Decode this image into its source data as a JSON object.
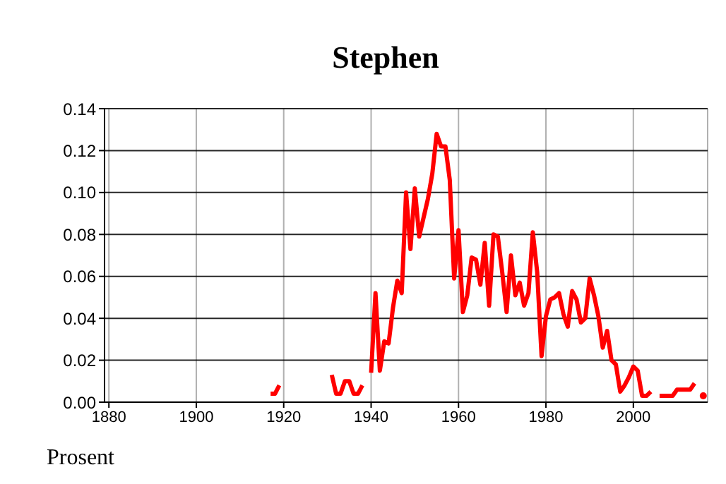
{
  "chart_data": {
    "type": "line",
    "title": "Stephen",
    "ylabel": "Prosent",
    "x": [
      1917,
      1918,
      1919,
      1920,
      1921,
      1922,
      1923,
      1924,
      1925,
      1926,
      1927,
      1928,
      1929,
      1930,
      1931,
      1932,
      1933,
      1934,
      1935,
      1936,
      1937,
      1938,
      1939,
      1940,
      1941,
      1942,
      1943,
      1944,
      1945,
      1946,
      1947,
      1948,
      1949,
      1950,
      1951,
      1952,
      1953,
      1954,
      1955,
      1956,
      1957,
      1958,
      1959,
      1960,
      1961,
      1962,
      1963,
      1964,
      1965,
      1966,
      1967,
      1968,
      1969,
      1970,
      1971,
      1972,
      1973,
      1974,
      1975,
      1976,
      1977,
      1978,
      1979,
      1980,
      1981,
      1982,
      1983,
      1984,
      1985,
      1986,
      1987,
      1988,
      1989,
      1990,
      1991,
      1992,
      1993,
      1994,
      1995,
      1996,
      1997,
      1998,
      1999,
      2000,
      2001,
      2002,
      2003,
      2004,
      2005,
      2006,
      2007,
      2008,
      2009,
      2010,
      2011,
      2012,
      2013,
      2014,
      2015,
      2016
    ],
    "series": [
      {
        "color": "#ff0000",
        "values": [
          0.004,
          0.004,
          0.008,
          null,
          null,
          null,
          null,
          null,
          null,
          null,
          null,
          null,
          null,
          null,
          0.013,
          0.004,
          0.004,
          0.01,
          0.01,
          0.004,
          0.004,
          0.008,
          null,
          0.014,
          0.052,
          0.015,
          0.029,
          0.028,
          0.045,
          0.058,
          0.052,
          0.1,
          0.073,
          0.102,
          0.079,
          0.088,
          0.097,
          0.109,
          0.128,
          0.122,
          0.122,
          0.106,
          0.059,
          0.082,
          0.043,
          0.051,
          0.069,
          0.068,
          0.056,
          0.076,
          0.046,
          0.08,
          0.079,
          0.062,
          0.043,
          0.07,
          0.051,
          0.057,
          0.046,
          0.052,
          0.081,
          0.062,
          0.022,
          0.041,
          0.049,
          0.05,
          0.052,
          0.042,
          0.036,
          0.053,
          0.049,
          0.038,
          0.04,
          0.059,
          0.051,
          0.041,
          0.026,
          0.034,
          0.02,
          0.018,
          0.005,
          0.008,
          0.012,
          0.017,
          0.015,
          0.003,
          0.003,
          0.005,
          null,
          0.003,
          0.003,
          0.003,
          0.003,
          0.006,
          0.006,
          0.006,
          0.006,
          0.009,
          null,
          0.003
        ]
      }
    ],
    "xlim": [
      1879,
      2017
    ],
    "xticks": [
      1880,
      1900,
      1920,
      1940,
      1960,
      1980,
      2000
    ],
    "ylim": [
      0,
      0.14
    ],
    "yticks": [
      {
        "value": 0,
        "label": "0.00"
      },
      {
        "value": 0.02,
        "label": "0.02"
      },
      {
        "value": 0.04,
        "label": "0.04"
      },
      {
        "value": 0.06,
        "label": "0.06"
      },
      {
        "value": 0.08,
        "label": "0.08"
      },
      {
        "value": 0.1,
        "label": "0.10"
      },
      {
        "value": 0.12,
        "label": "0.12"
      },
      {
        "value": 0.14,
        "label": "0.14"
      }
    ],
    "grid": true,
    "legend": false,
    "line_style": "solid",
    "marker": "none"
  }
}
